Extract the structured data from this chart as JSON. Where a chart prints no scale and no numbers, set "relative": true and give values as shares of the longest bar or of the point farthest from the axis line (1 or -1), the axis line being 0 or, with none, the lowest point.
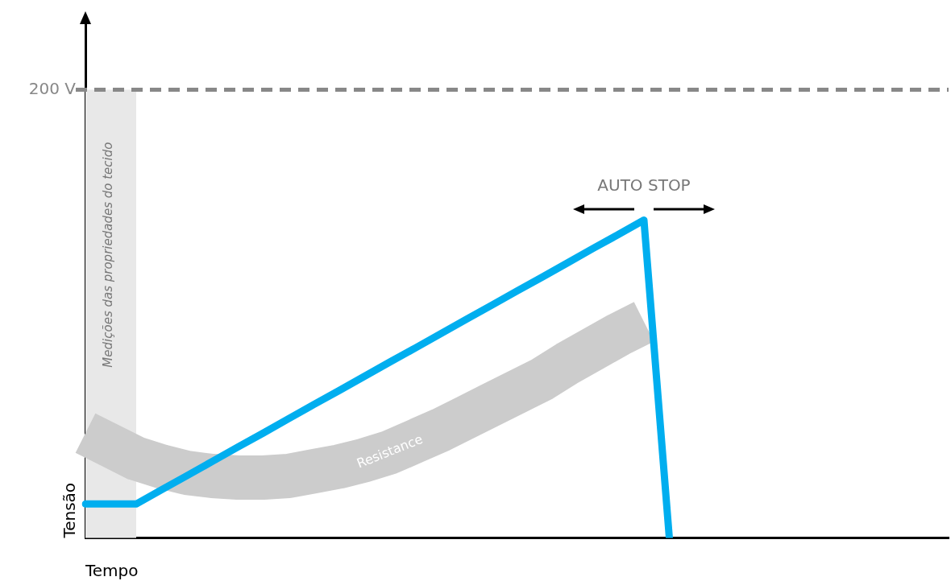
{
  "chart_data": {
    "type": "line",
    "relative": true,
    "xlabel": "Tempo",
    "ylabel": "Tensão",
    "grid": false,
    "legend": false,
    "marker": "none",
    "categories": [
      null,
      null,
      null,
      null,
      null,
      null,
      null,
      null,
      null,
      null,
      null,
      null,
      null,
      null,
      null,
      null,
      null,
      null,
      null,
      null,
      null,
      null,
      null,
      null,
      null,
      null,
      null,
      null,
      null,
      null,
      null,
      null,
      null,
      null,
      null
    ],
    "series": [
      {
        "name": "Resistance",
        "color": "#cccccc",
        "values": [
          0.33,
          0.29,
          0.25,
          0.225,
          0.205,
          0.195,
          0.19,
          0.19,
          0.195,
          0.21,
          0.225,
          0.245,
          0.27,
          0.305,
          0.34,
          0.38,
          0.42,
          0.46,
          0.5,
          0.55,
          0.595,
          0.64,
          0.68,
          null,
          null,
          null,
          null,
          null,
          null,
          null,
          null,
          null,
          null,
          null,
          null
        ]
      },
      {
        "color": "#00aeef",
        "values": [
          0.107,
          0.107,
          0.107,
          0.152,
          0.196,
          0.241,
          0.286,
          0.33,
          0.375,
          0.42,
          0.464,
          0.509,
          0.554,
          0.598,
          0.643,
          0.688,
          0.732,
          0.777,
          0.821,
          0.866,
          0.911,
          0.955,
          1,
          0,
          null,
          null,
          null,
          null,
          null,
          null,
          null,
          null,
          null,
          null,
          null
        ]
      }
    ],
    "ref_lines": [
      {
        "axis": "y",
        "value": 1.41,
        "label": "200 V",
        "color": "#888888",
        "line_style": "dashed"
      }
    ],
    "annotations": [
      "Medições das propriedades do tecido",
      "AUTO STOP"
    ]
  }
}
